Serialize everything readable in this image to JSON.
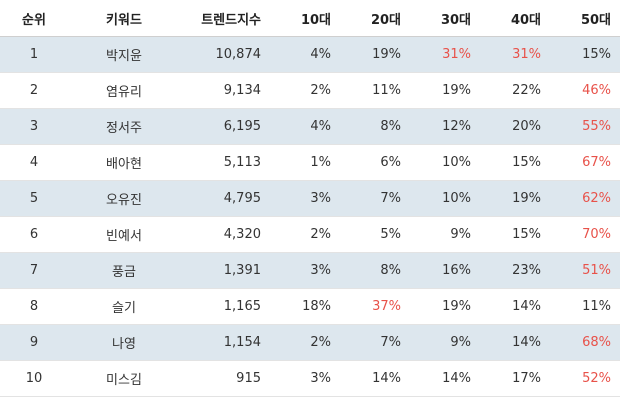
{
  "table": {
    "headers": [
      "순위",
      "키워드",
      "트렌드지수",
      "10대",
      "20대",
      "30대",
      "40대",
      "50대"
    ],
    "rows": [
      {
        "rank": "1",
        "keyword": "박지윤",
        "index": "10,874",
        "a10": "4%",
        "a20": "19%",
        "a30": "31%",
        "a40": "31%",
        "a50": "15%",
        "highlight": [
          "a30",
          "a40"
        ]
      },
      {
        "rank": "2",
        "keyword": "염유리",
        "index": "9,134",
        "a10": "2%",
        "a20": "11%",
        "a30": "19%",
        "a40": "22%",
        "a50": "46%",
        "highlight": [
          "a50"
        ]
      },
      {
        "rank": "3",
        "keyword": "정서주",
        "index": "6,195",
        "a10": "4%",
        "a20": "8%",
        "a30": "12%",
        "a40": "20%",
        "a50": "55%",
        "highlight": [
          "a50"
        ]
      },
      {
        "rank": "4",
        "keyword": "배아현",
        "index": "5,113",
        "a10": "1%",
        "a20": "6%",
        "a30": "10%",
        "a40": "15%",
        "a50": "67%",
        "highlight": [
          "a50"
        ]
      },
      {
        "rank": "5",
        "keyword": "오유진",
        "index": "4,795",
        "a10": "3%",
        "a20": "7%",
        "a30": "10%",
        "a40": "19%",
        "a50": "62%",
        "highlight": [
          "a50"
        ]
      },
      {
        "rank": "6",
        "keyword": "빈예서",
        "index": "4,320",
        "a10": "2%",
        "a20": "5%",
        "a30": "9%",
        "a40": "15%",
        "a50": "70%",
        "highlight": [
          "a50"
        ]
      },
      {
        "rank": "7",
        "keyword": "풍금",
        "index": "1,391",
        "a10": "3%",
        "a20": "8%",
        "a30": "16%",
        "a40": "23%",
        "a50": "51%",
        "highlight": [
          "a50"
        ]
      },
      {
        "rank": "8",
        "keyword": "슬기",
        "index": "1,165",
        "a10": "18%",
        "a20": "37%",
        "a30": "19%",
        "a40": "14%",
        "a50": "11%",
        "highlight": [
          "a20"
        ]
      },
      {
        "rank": "9",
        "keyword": "나영",
        "index": "1,154",
        "a10": "2%",
        "a20": "7%",
        "a30": "9%",
        "a40": "14%",
        "a50": "68%",
        "highlight": [
          "a50"
        ]
      },
      {
        "rank": "10",
        "keyword": "미스김",
        "index": "915",
        "a10": "3%",
        "a20": "14%",
        "a30": "14%",
        "a40": "17%",
        "a50": "52%",
        "highlight": [
          "a50"
        ]
      }
    ]
  },
  "colors": {
    "highlight_text": "#e8524a",
    "shaded_row": "#dde7ee"
  }
}
